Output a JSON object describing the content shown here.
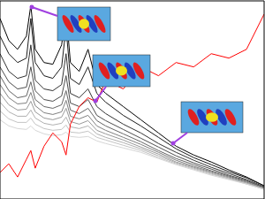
{
  "chart_data": {
    "type": "line",
    "tick_labels": false,
    "grid": false,
    "xlim": [
      0,
      300
    ],
    "xticks": [
      0,
      100,
      200,
      300
    ],
    "ylim": [
      0,
      225
    ],
    "yticks": [
      0,
      50,
      100,
      150,
      200
    ],
    "x": [
      0,
      10,
      20,
      30,
      35,
      40,
      50,
      60,
      70,
      75,
      80,
      90,
      100,
      110,
      120,
      140,
      160,
      180,
      200,
      220,
      240,
      260,
      280,
      300
    ],
    "series": [
      {
        "color": "#000000",
        "values": [
          205,
          180,
          170,
          185,
          220,
          170,
          155,
          153,
          175,
          213,
          155,
          145,
          170,
          130,
          120,
          105,
          90,
          75,
          60,
          50,
          42,
          33,
          25,
          15
        ]
      },
      {
        "color": "#1a1a1a",
        "values": [
          185,
          165,
          155,
          160,
          205,
          155,
          140,
          137,
          150,
          195,
          137,
          130,
          150,
          120,
          110,
          95,
          83,
          70,
          57,
          47,
          39,
          31,
          24,
          15
        ]
      },
      {
        "color": "#333333",
        "values": [
          165,
          145,
          137,
          140,
          175,
          135,
          125,
          123,
          130,
          165,
          120,
          115,
          125,
          105,
          97,
          85,
          75,
          63,
          53,
          44,
          36,
          29,
          22,
          14
        ]
      },
      {
        "color": "#4d4d4d",
        "values": [
          150,
          133,
          125,
          127,
          150,
          123,
          113,
          111,
          117,
          140,
          109,
          105,
          113,
          95,
          89,
          79,
          69,
          59,
          49,
          41,
          34,
          27,
          21,
          13
        ]
      },
      {
        "color": "#666666",
        "values": [
          140,
          123,
          115,
          117,
          133,
          113,
          105,
          103,
          107,
          123,
          101,
          97,
          103,
          89,
          83,
          74,
          65,
          55,
          46,
          39,
          32,
          26,
          20,
          13
        ]
      },
      {
        "color": "#808080",
        "values": [
          130,
          115,
          108,
          109,
          121,
          106,
          98,
          96,
          99,
          112,
          94,
          91,
          95,
          83,
          78,
          70,
          62,
          53,
          44,
          37,
          31,
          25,
          19,
          12
        ]
      },
      {
        "color": "#999999",
        "values": [
          120,
          107,
          101,
          102,
          111,
          99,
          92,
          90,
          93,
          103,
          88,
          85,
          89,
          78,
          74,
          67,
          59,
          51,
          42,
          36,
          30,
          24,
          18,
          12
        ]
      },
      {
        "color": "#b0b0b0",
        "values": [
          110,
          99,
          94,
          94,
          101,
          92,
          86,
          84,
          86,
          93,
          82,
          80,
          83,
          74,
          70,
          64,
          57,
          49,
          41,
          35,
          29,
          23,
          18,
          11
        ]
      },
      {
        "color": "#c4c4c4",
        "values": [
          100,
          91,
          87,
          87,
          92,
          85,
          80,
          78,
          79,
          84,
          76,
          75,
          77,
          70,
          67,
          61,
          55,
          47,
          40,
          34,
          28,
          23,
          17,
          11
        ]
      },
      {
        "color": "#d6d6d6",
        "values": [
          90,
          83,
          80,
          79,
          83,
          78,
          74,
          72,
          73,
          76,
          71,
          70,
          71,
          66,
          63,
          58,
          53,
          46,
          39,
          33,
          27,
          22,
          17,
          11
        ]
      },
      {
        "color": "#ff0000",
        "values": [
          30,
          40,
          25,
          45,
          55,
          35,
          60,
          75,
          65,
          50,
          85,
          105,
          115,
          110,
          135,
          125,
          150,
          140,
          155,
          150,
          165,
          160,
          170,
          210
        ]
      }
    ]
  }
}
